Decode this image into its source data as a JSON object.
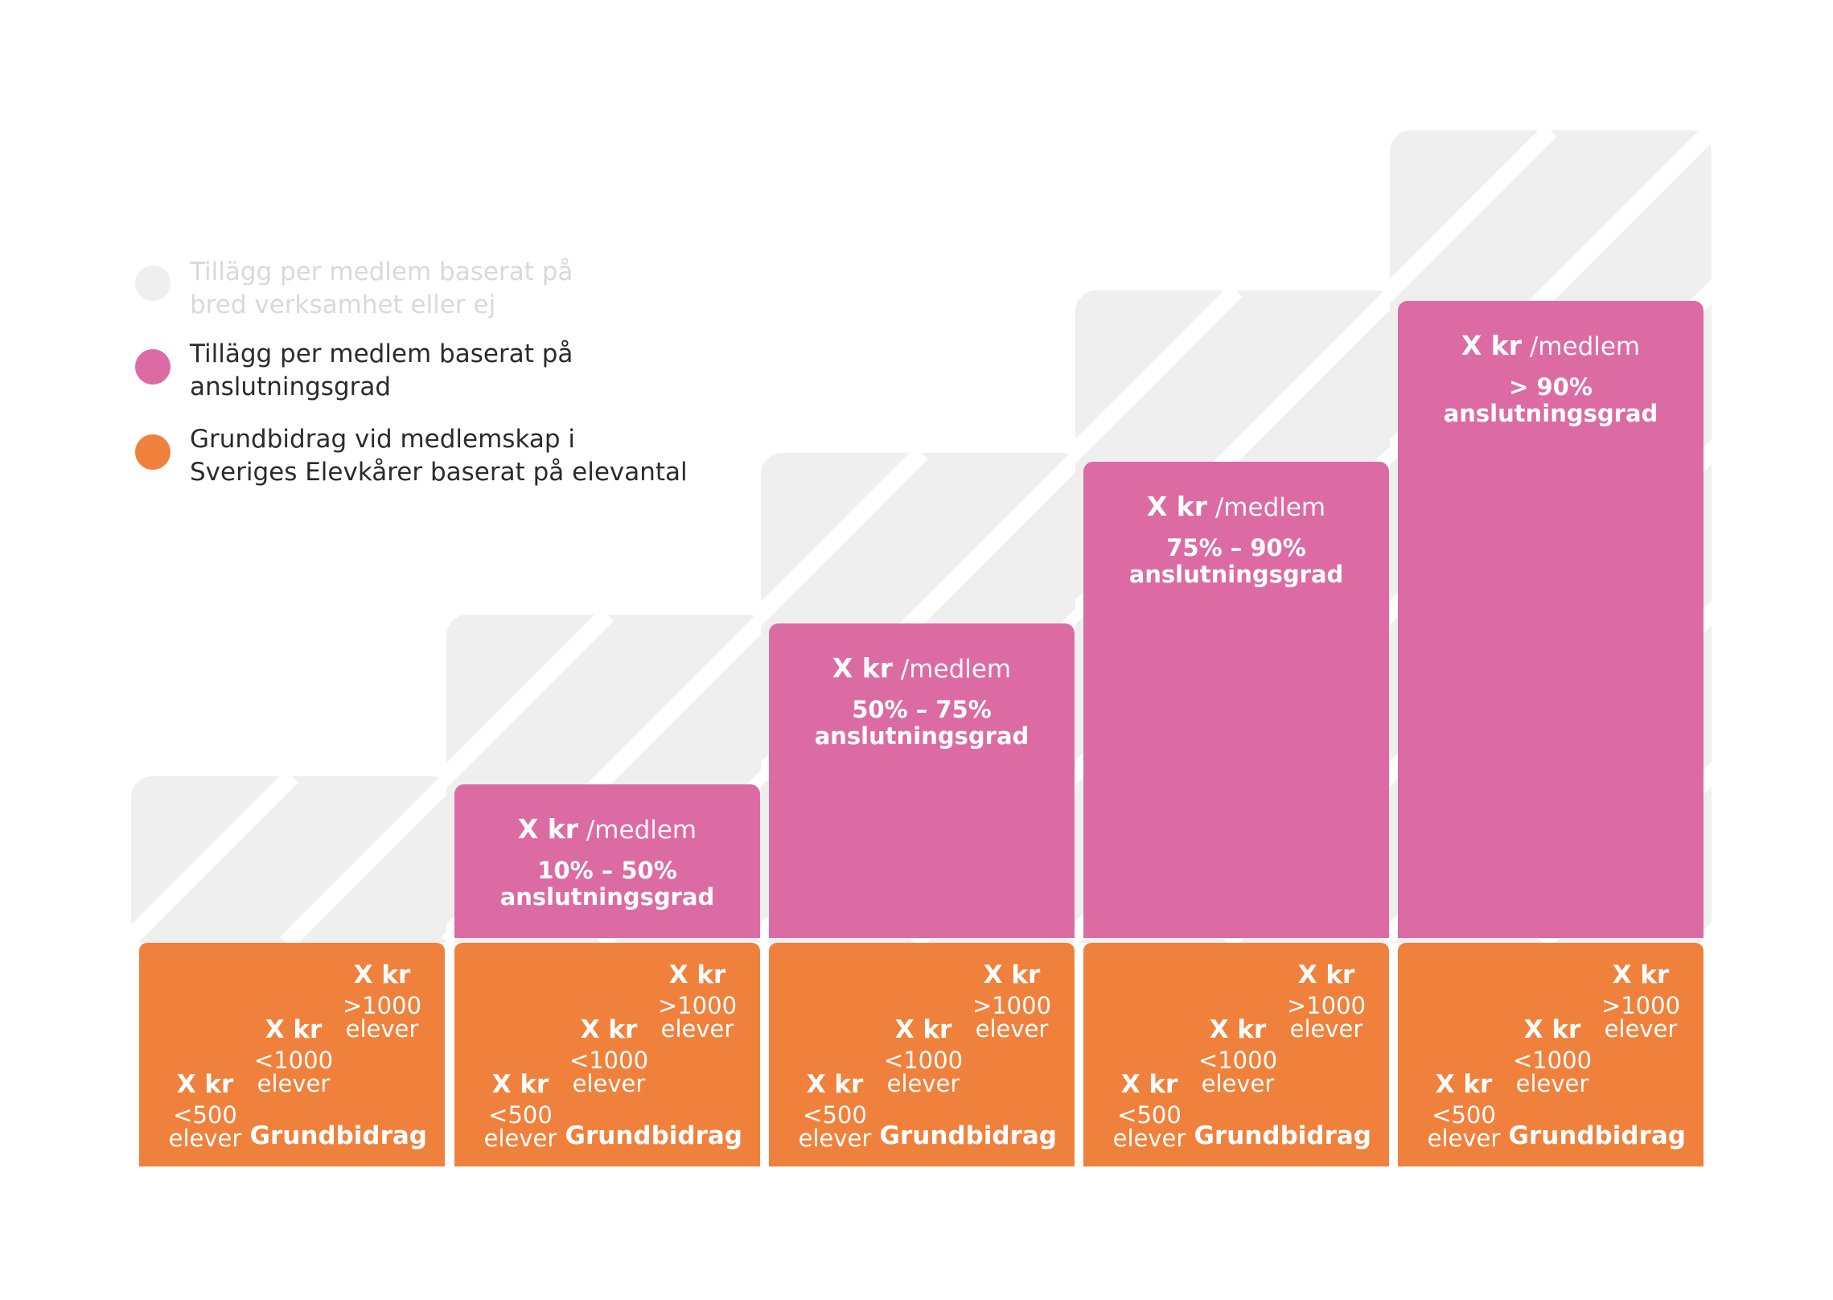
{
  "colors": {
    "grey": "#efefef",
    "pink": "#dc6ba4",
    "orange": "#f0813c",
    "legend_grey_text": "#d9d9d9",
    "legend_text": "#2b2b2b"
  },
  "legend": [
    {
      "key": "grey",
      "line1": "Tillägg per medlem baserat på",
      "line2": "bred verksamhet eller ej"
    },
    {
      "key": "pink",
      "line1": "Tillägg per medlem baserat på",
      "line2": "anslutningsgrad"
    },
    {
      "key": "orange",
      "line1": "Grundbidrag vid medlemskap i",
      "line2": "Sveriges Elevkårer baserat på elevantal"
    }
  ],
  "levels": [
    {
      "price_amount": "",
      "price_unit": "",
      "range": "",
      "range_unit": ""
    },
    {
      "price_amount": "X kr",
      "price_unit": "/medlem",
      "range": "10% – 50%",
      "range_unit": "anslutningsgrad"
    },
    {
      "price_amount": "X kr",
      "price_unit": "/medlem",
      "range": "50% – 75%",
      "range_unit": "anslutningsgrad"
    },
    {
      "price_amount": "X kr",
      "price_unit": "/medlem",
      "range": "75% – 90%",
      "range_unit": "anslutningsgrad"
    },
    {
      "price_amount": "X kr",
      "price_unit": "/medlem",
      "range": "> 90%",
      "range_unit": "anslutningsgrad"
    }
  ],
  "grund": {
    "label": "Grundbidrag",
    "tiers": [
      {
        "amount": "X kr",
        "cond": "<500",
        "unit": "elever"
      },
      {
        "amount": "X kr",
        "cond": "<1000",
        "unit": "elever"
      },
      {
        "amount": "X kr",
        "cond": ">1000",
        "unit": "elever"
      }
    ]
  }
}
